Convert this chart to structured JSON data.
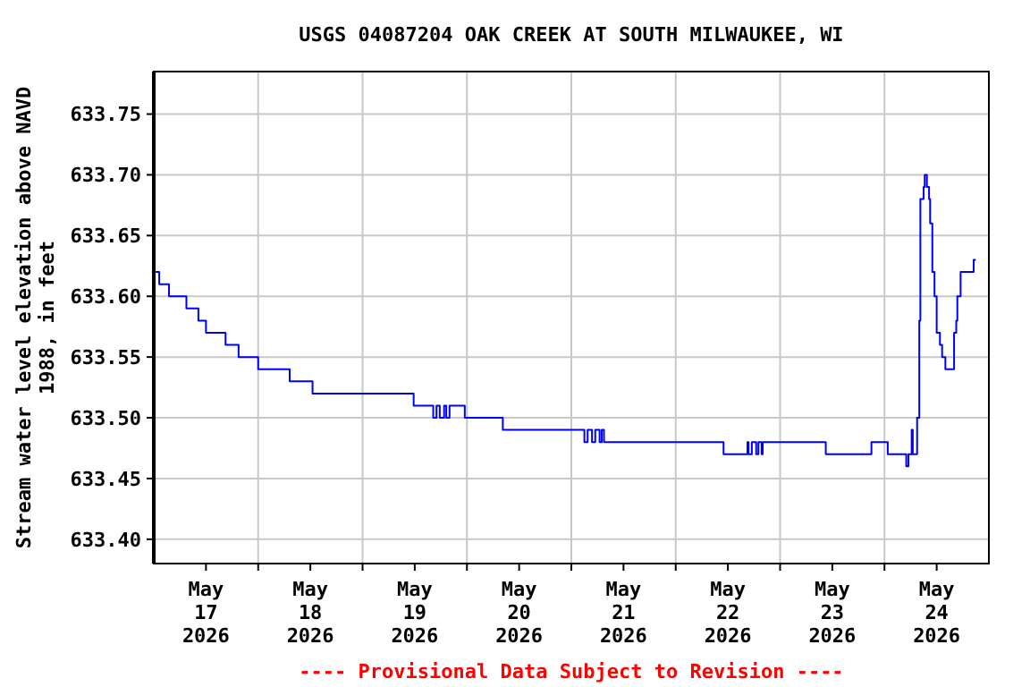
{
  "chart_data": {
    "type": "step",
    "title": "USGS 04087204 OAK CREEK AT SOUTH MILWAUKEE, WI",
    "ylabel": "Stream water level elevation above NAVD 1988, in feet",
    "annotations": [
      "---- Provisional Data Subject to Revision ----"
    ],
    "grid": true,
    "marker": "none",
    "line_style": "solid",
    "xlim": [
      "2026-05-17T00:00",
      "2026-05-25T00:00"
    ],
    "xticks": [
      {
        "value": "2026-05-17T12:00",
        "label": "May 17 2026"
      },
      {
        "value": "2026-05-18T12:00",
        "label": "May 18 2026"
      },
      {
        "value": "2026-05-19T12:00",
        "label": "May 19 2026"
      },
      {
        "value": "2026-05-20T12:00",
        "label": "May 20 2026"
      },
      {
        "value": "2026-05-21T12:00",
        "label": "May 21 2026"
      },
      {
        "value": "2026-05-22T12:00",
        "label": "May 22 2026"
      },
      {
        "value": "2026-05-23T12:00",
        "label": "May 23 2026"
      },
      {
        "value": "2026-05-24T12:00",
        "label": "May 24 2026"
      },
      {
        "value": "2026-05-18T00:00",
        "label": null
      },
      {
        "value": "2026-05-19T00:00",
        "label": null
      },
      {
        "value": "2026-05-20T00:00",
        "label": null
      },
      {
        "value": "2026-05-21T00:00",
        "label": null
      },
      {
        "value": "2026-05-22T00:00",
        "label": null
      },
      {
        "value": "2026-05-23T00:00",
        "label": null
      },
      {
        "value": "2026-05-24T00:00",
        "label": null
      }
    ],
    "ylim": [
      633.38,
      633.785
    ],
    "yticks": [
      {
        "value": 633.4,
        "label": "633.40"
      },
      {
        "value": 633.45,
        "label": "633.45"
      },
      {
        "value": 633.5,
        "label": "633.50"
      },
      {
        "value": 633.55,
        "label": "633.55"
      },
      {
        "value": 633.6,
        "label": "633.60"
      },
      {
        "value": 633.65,
        "label": "633.65"
      },
      {
        "value": 633.7,
        "label": "633.70"
      },
      {
        "value": 633.75,
        "label": "633.75"
      }
    ],
    "series": [
      {
        "color": "#0000ff",
        "x": [
          "2026-05-17T00:00",
          "2026-05-17T01:15",
          "2026-05-17T03:30",
          "2026-05-17T07:30",
          "2026-05-17T10:15",
          "2026-05-17T12:00",
          "2026-05-17T16:30",
          "2026-05-17T19:30",
          "2026-05-18T00:00",
          "2026-05-18T07:15",
          "2026-05-18T12:30",
          "2026-05-19T11:45",
          "2026-05-19T16:15",
          "2026-05-19T17:00",
          "2026-05-19T17:45",
          "2026-05-19T18:45",
          "2026-05-19T19:15",
          "2026-05-19T20:00",
          "2026-05-19T23:30",
          "2026-05-20T08:15",
          "2026-05-21T03:00",
          "2026-05-21T03:45",
          "2026-05-21T04:45",
          "2026-05-21T05:30",
          "2026-05-21T06:30",
          "2026-05-21T07:00",
          "2026-05-21T07:30",
          "2026-05-22T11:00",
          "2026-05-22T16:30",
          "2026-05-22T16:45",
          "2026-05-22T17:30",
          "2026-05-22T18:30",
          "2026-05-22T19:00",
          "2026-05-22T19:45",
          "2026-05-22T20:00",
          "2026-05-23T10:30",
          "2026-05-23T21:00",
          "2026-05-24T00:45",
          "2026-05-24T05:00",
          "2026-05-24T05:30",
          "2026-05-24T06:15",
          "2026-05-24T06:30",
          "2026-05-24T07:30",
          "2026-05-24T08:00",
          "2026-05-24T08:15",
          "2026-05-24T09:00",
          "2026-05-24T09:15",
          "2026-05-24T09:45",
          "2026-05-24T10:15",
          "2026-05-24T10:30",
          "2026-05-24T11:00",
          "2026-05-24T11:30",
          "2026-05-24T12:00",
          "2026-05-24T12:45",
          "2026-05-24T13:15",
          "2026-05-24T14:00",
          "2026-05-24T15:15",
          "2026-05-24T16:00",
          "2026-05-24T16:30",
          "2026-05-24T16:45",
          "2026-05-24T17:30",
          "2026-05-24T20:15",
          "2026-05-24T20:30",
          "2026-05-24T21:00"
        ],
        "values": [
          633.62,
          633.61,
          633.6,
          633.59,
          633.58,
          633.57,
          633.56,
          633.55,
          633.54,
          633.53,
          633.52,
          633.51,
          633.5,
          633.51,
          633.5,
          633.51,
          633.5,
          633.51,
          633.5,
          633.49,
          633.48,
          633.49,
          633.48,
          633.49,
          633.48,
          633.49,
          633.48,
          633.47,
          633.48,
          633.47,
          633.48,
          633.47,
          633.48,
          633.47,
          633.48,
          633.47,
          633.48,
          633.47,
          633.46,
          633.47,
          633.49,
          633.47,
          633.5,
          633.58,
          633.68,
          633.69,
          633.7,
          633.69,
          633.68,
          633.66,
          633.62,
          633.6,
          633.57,
          633.56,
          633.55,
          633.54,
          633.54,
          633.57,
          633.58,
          633.6,
          633.62,
          633.62,
          633.63,
          633.63
        ]
      }
    ]
  }
}
